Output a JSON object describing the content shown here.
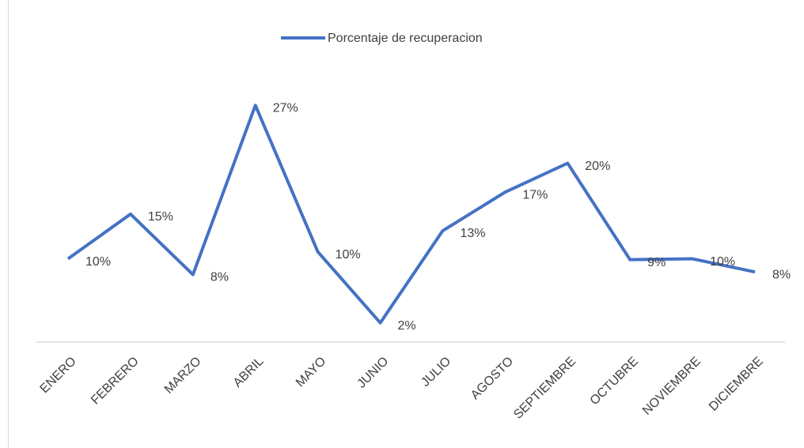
{
  "chart_data": {
    "type": "line",
    "categories": [
      "ENERO",
      "FEBRERO",
      "MARZO",
      "ABRIL",
      "MAYO",
      "JUNIO",
      "JULIO",
      "AGOSTO",
      "SEPTIEMBRE",
      "OCTUBRE",
      "NOVIEMBRE",
      "DICIEMBRE"
    ],
    "series": [
      {
        "name": "Porcentaje de recuperacion",
        "color": "#4472c4",
        "values": [
          9.5,
          14.6,
          7.7,
          27,
          10.3,
          2.2,
          12.7,
          17.1,
          20.4,
          9.4,
          9.5,
          8
        ],
        "value_labels": [
          "10%",
          "15%",
          "8%",
          "27%",
          "10%",
          "2%",
          "13%",
          "17%",
          "20%",
          "9%",
          "10%",
          "8%"
        ]
      }
    ],
    "ylim": [
      0,
      30
    ],
    "legend": "top"
  }
}
